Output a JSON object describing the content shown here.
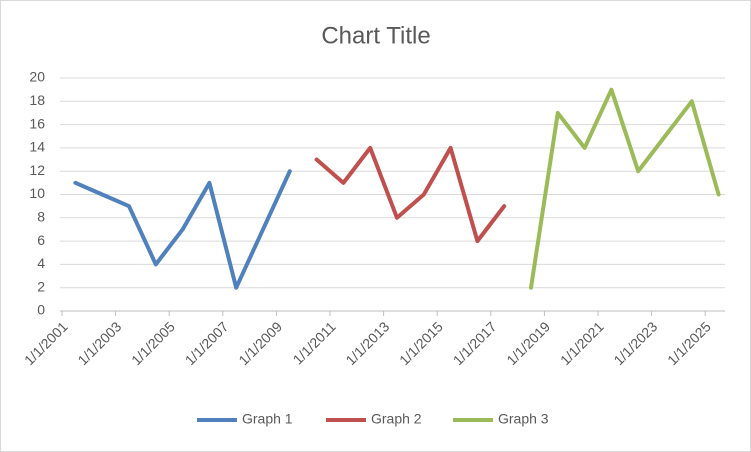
{
  "chart_data": {
    "type": "line",
    "title": "Chart Title",
    "x": [
      2001,
      2002,
      2003,
      2004,
      2005,
      2006,
      2007,
      2008,
      2009,
      2010,
      2011,
      2012,
      2013,
      2014,
      2015,
      2016,
      2017,
      2018,
      2019,
      2020,
      2021,
      2022,
      2023,
      2024,
      2025
    ],
    "axis_position": "between",
    "series": [
      {
        "name": "Graph 1",
        "color": "#4f81bd",
        "values": [
          11,
          10,
          9,
          4,
          7,
          11,
          2,
          7,
          12,
          null,
          null,
          null,
          null,
          null,
          null,
          null,
          null,
          null,
          null,
          null,
          null,
          null,
          null,
          null,
          null
        ]
      },
      {
        "name": "Graph 2",
        "color": "#c0504d",
        "values": [
          null,
          null,
          null,
          null,
          null,
          null,
          null,
          null,
          null,
          13,
          11,
          14,
          8,
          10,
          14,
          6,
          9,
          null,
          null,
          null,
          null,
          null,
          null,
          null,
          null
        ]
      },
      {
        "name": "Graph 3",
        "color": "#9bbb59",
        "values": [
          null,
          null,
          null,
          null,
          null,
          null,
          null,
          null,
          null,
          null,
          null,
          null,
          null,
          null,
          null,
          null,
          null,
          2,
          17,
          14,
          19,
          12,
          15,
          18,
          10
        ]
      }
    ],
    "xlim": [
      2001,
      2026
    ],
    "xticks": [
      {
        "value": 2001,
        "label": "1/1/2001"
      },
      {
        "value": 2003,
        "label": "1/1/2003"
      },
      {
        "value": 2005,
        "label": "1/1/2005"
      },
      {
        "value": 2007,
        "label": "1/1/2007"
      },
      {
        "value": 2009,
        "label": "1/1/2009"
      },
      {
        "value": 2011,
        "label": "1/1/2011"
      },
      {
        "value": 2013,
        "label": "1/1/2013"
      },
      {
        "value": 2015,
        "label": "1/1/2015"
      },
      {
        "value": 2017,
        "label": "1/1/2017"
      },
      {
        "value": 2019,
        "label": "1/1/2019"
      },
      {
        "value": 2021,
        "label": "1/1/2021"
      },
      {
        "value": 2023,
        "label": "1/1/2023"
      },
      {
        "value": 2025,
        "label": "1/1/2025"
      }
    ],
    "ylim": [
      0,
      20
    ],
    "yticks": [
      0,
      2,
      4,
      6,
      8,
      10,
      12,
      14,
      16,
      18,
      20
    ],
    "grid": true,
    "legend": "bottom"
  }
}
